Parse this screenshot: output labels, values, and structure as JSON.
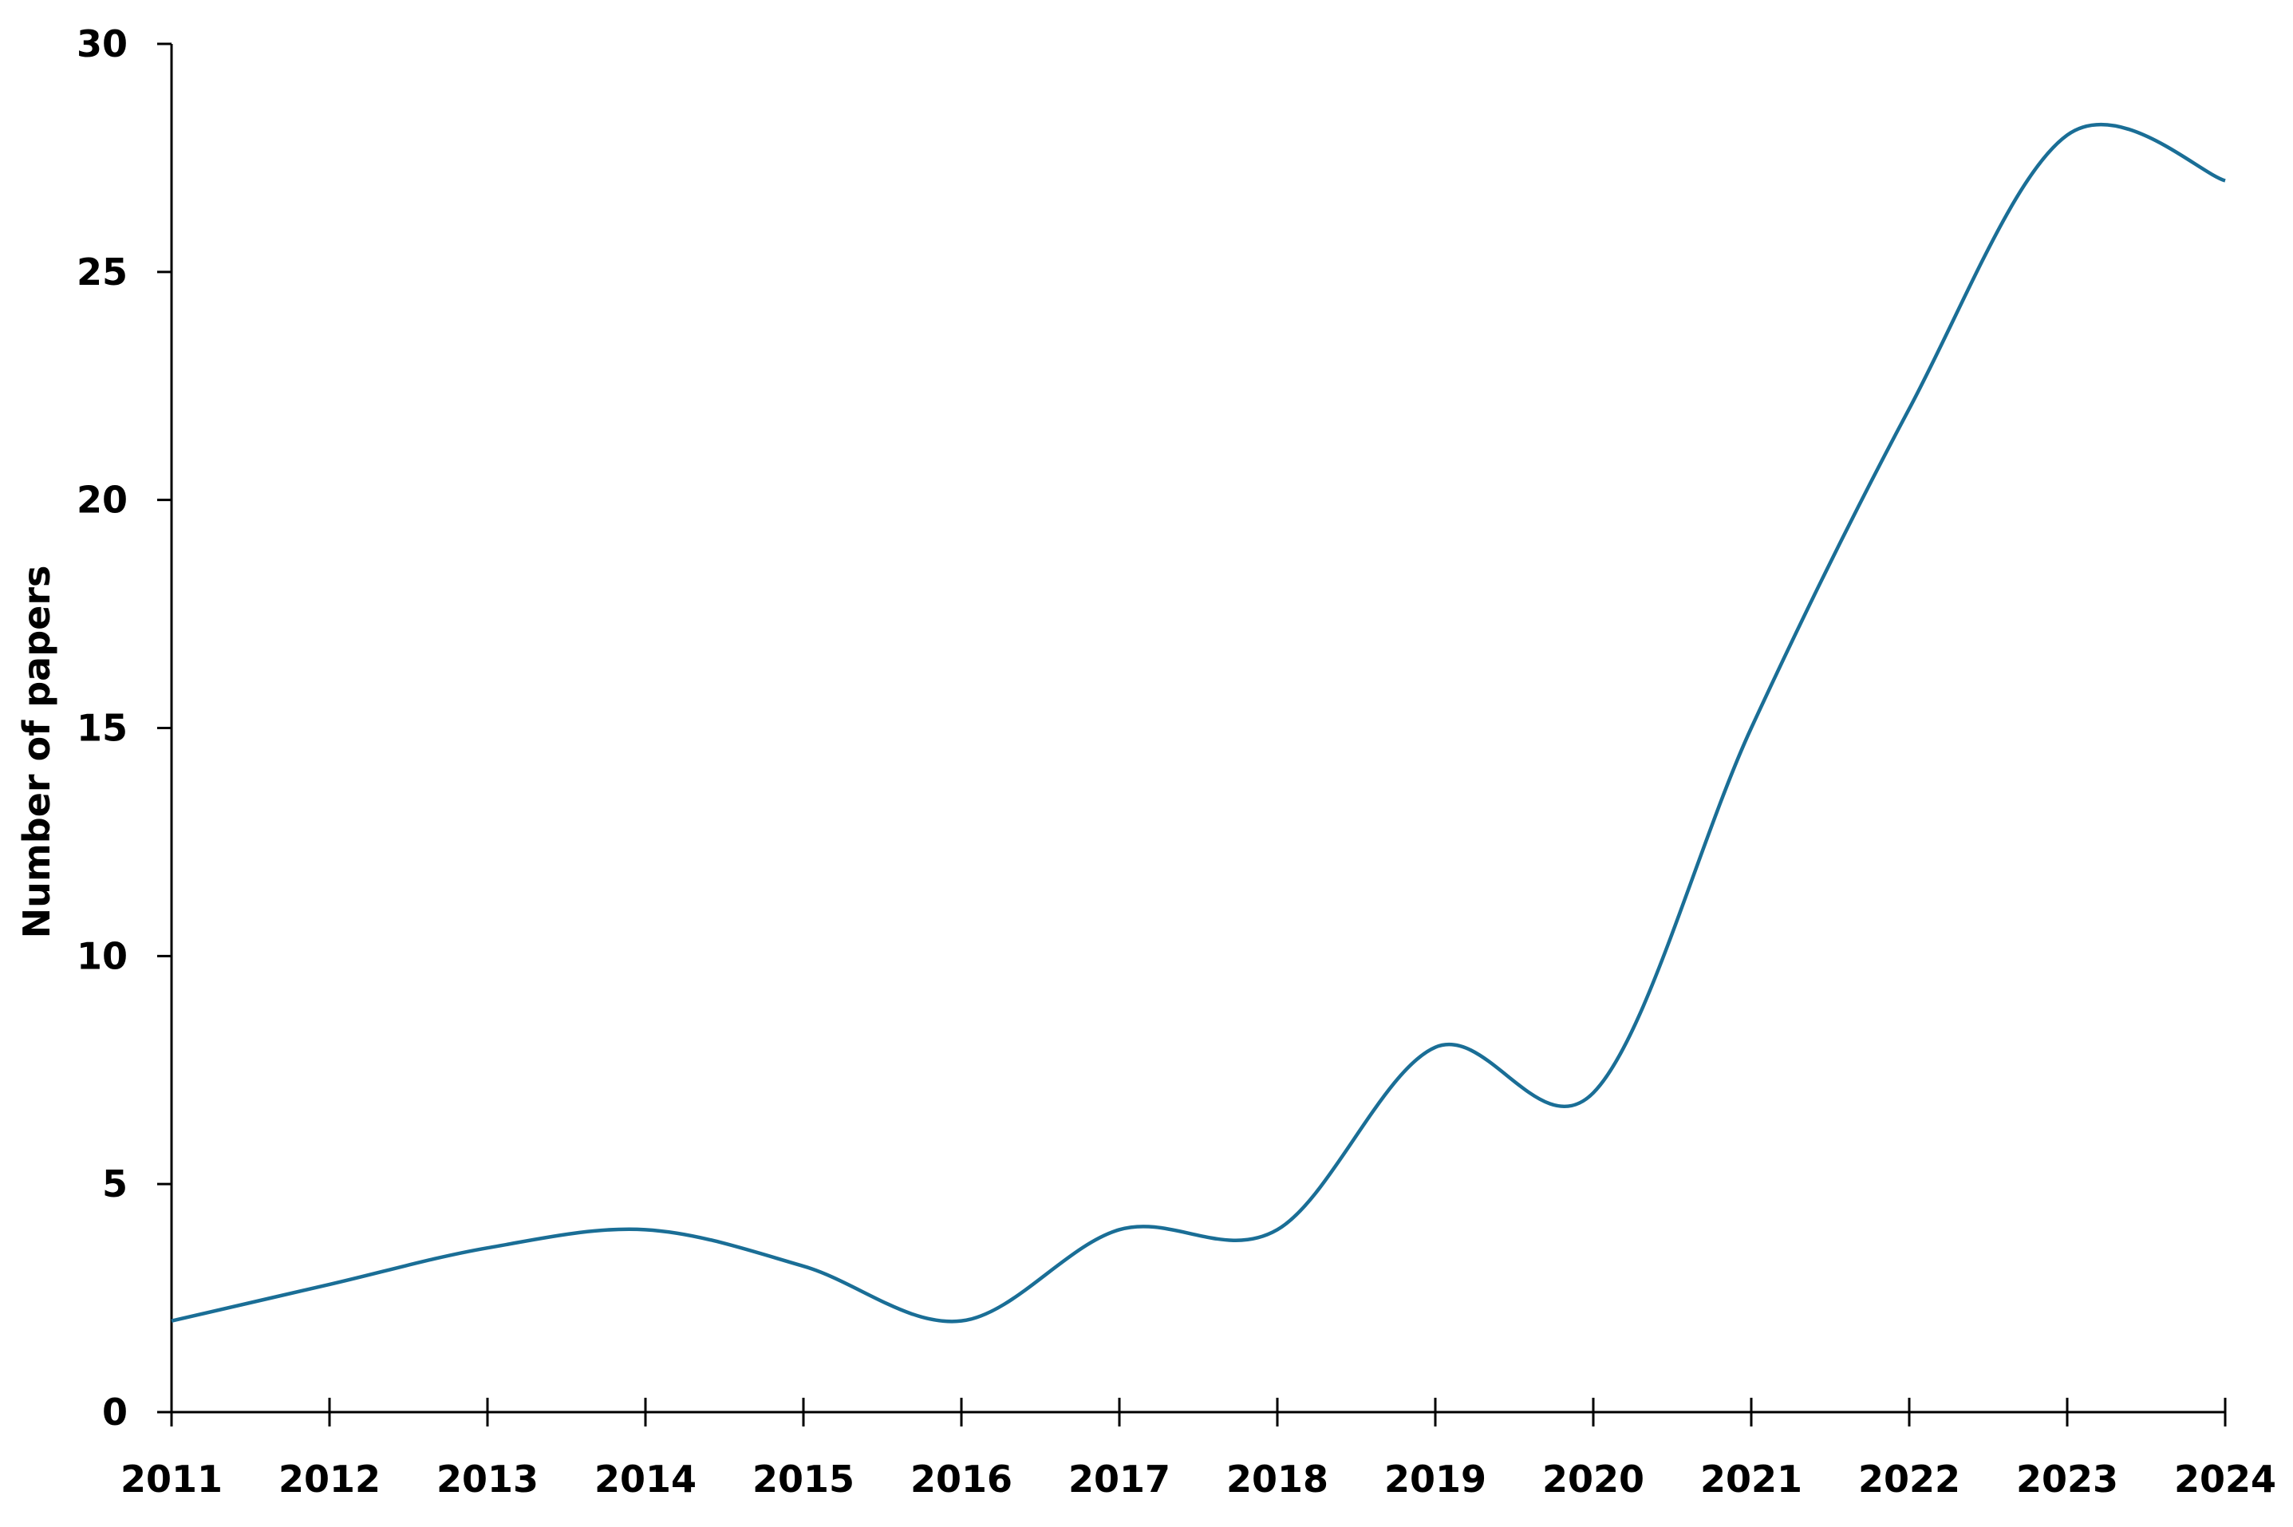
{
  "chart_data": {
    "type": "line",
    "title": "",
    "xlabel": "",
    "ylabel": "Number of papers",
    "x": [
      2011,
      2012,
      2013,
      2014,
      2015,
      2016,
      2017,
      2018,
      2019,
      2020,
      2021,
      2022,
      2023,
      2024
    ],
    "series": [
      {
        "values": [
          2,
          2.8,
          3.6,
          4,
          3.2,
          2,
          4,
          4,
          8,
          7,
          15,
          22,
          28,
          27
        ]
      }
    ],
    "xlim": [
      2011,
      2024
    ],
    "ylim": [
      0,
      30
    ],
    "yticks": [
      0,
      5,
      10,
      15,
      20,
      25,
      30
    ],
    "xticks": [
      2011,
      2012,
      2013,
      2014,
      2015,
      2016,
      2017,
      2018,
      2019,
      2020,
      2021,
      2022,
      2023,
      2024
    ],
    "grid": false,
    "legend": "none",
    "line_color": "#1a6e96",
    "axis_color": "#000000"
  }
}
